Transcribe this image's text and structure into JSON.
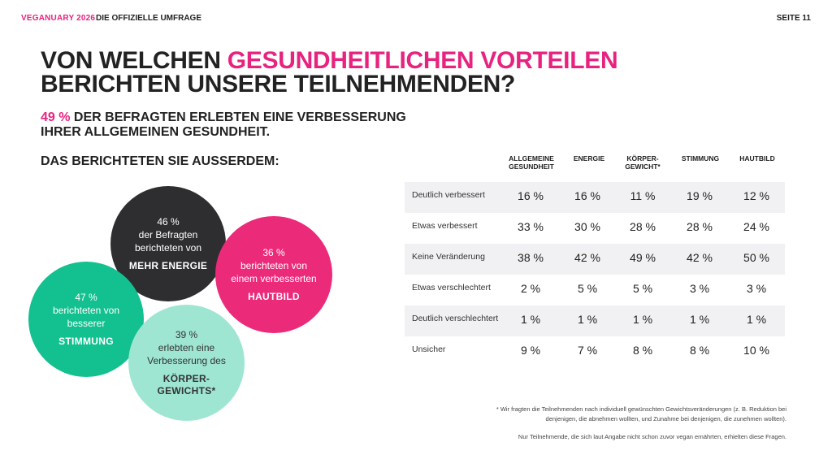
{
  "header": {
    "brand": "VEGANUARY 2026",
    "subtitle": "DIE OFFIZIELLE UMFRAGE",
    "page": "SEITE 11"
  },
  "title": {
    "part1": "VON WELCHEN ",
    "accent": "GESUNDHEITLICHEN VORTEILEN",
    "part2": "BERICHTEN UNSERE TEILNEHMENDEN?"
  },
  "subtitle": {
    "accent": "49 %",
    "text": " DER BEFRAGTEN ERLEBTEN EINE VERBESSERUNG IHRER ALLGEMEINEN GESUNDHEIT."
  },
  "section_heading": "DAS BERICHTETEN SIE AUSSERDEM:",
  "bubbles": {
    "energy": {
      "line1": "46 %",
      "line2": "der Befragten",
      "line3": "berichteten von",
      "emphasis": "MEHR ENERGIE",
      "color": "#2e2e30"
    },
    "skin": {
      "line1": "36 %",
      "line2": "berichteten von",
      "line3": "einem verbesserten",
      "emphasis": "HAUTBILD",
      "color": "#ec2a7a"
    },
    "mood": {
      "line1": "47 %",
      "line2": "berichteten von",
      "line3": "besserer",
      "emphasis": "STIMMUNG",
      "color": "#13c08f"
    },
    "weight": {
      "line1": "39 %",
      "line2": "erlebten eine",
      "line3": "Verbesserung des",
      "emphasis1": "KÖRPER-",
      "emphasis2": "GEWICHTS*",
      "color": "#9ee6d2"
    }
  },
  "table": {
    "columns": [
      {
        "l1": "ALLGEMEINE",
        "l2": "GESUNDHEIT"
      },
      {
        "l1": "ENERGIE",
        "l2": ""
      },
      {
        "l1": "KÖRPER-",
        "l2": "GEWICHT*"
      },
      {
        "l1": "STIMMUNG",
        "l2": ""
      },
      {
        "l1": "HAUTBILD",
        "l2": ""
      }
    ],
    "rows": [
      {
        "label": "Deutlich verbessert",
        "values": [
          "16 %",
          "16 %",
          "11 %",
          "19 %",
          "12 %"
        ]
      },
      {
        "label": "Etwas verbessert",
        "values": [
          "33 %",
          "30 %",
          "28 %",
          "28 %",
          "24 %"
        ]
      },
      {
        "label": "Keine Veränderung",
        "values": [
          "38 %",
          "42 %",
          "49 %",
          "42 %",
          "50 %"
        ]
      },
      {
        "label": "Etwas verschlechtert",
        "values": [
          "2 %",
          "5 %",
          "5 %",
          "3 %",
          "3 %"
        ]
      },
      {
        "label": "Deutlich verschlechtert",
        "values": [
          "1 %",
          "1 %",
          "1 %",
          "1 %",
          "1 %"
        ]
      },
      {
        "label": "Unsicher",
        "values": [
          "9 %",
          "7 %",
          "8 %",
          "8 %",
          "10 %"
        ]
      }
    ]
  },
  "footnotes": {
    "note1_line1": "* Wir fragten die Teilnehmenden nach individuell gewünschten Gewichtsveränderungen (z. B. Reduktion bei",
    "note1_line2": "denjenigen, die abnehmen wollten, und Zunahme bei denjenigen, die zunehmen wollten).",
    "note2": "Nur Teilnehmende, die sich laut Angabe nicht schon zuvor vegan ernährten, erhielten diese Fragen."
  },
  "colors": {
    "accent": "#e8237f",
    "dark": "#222222",
    "row_shade": "#f1f1f3"
  }
}
